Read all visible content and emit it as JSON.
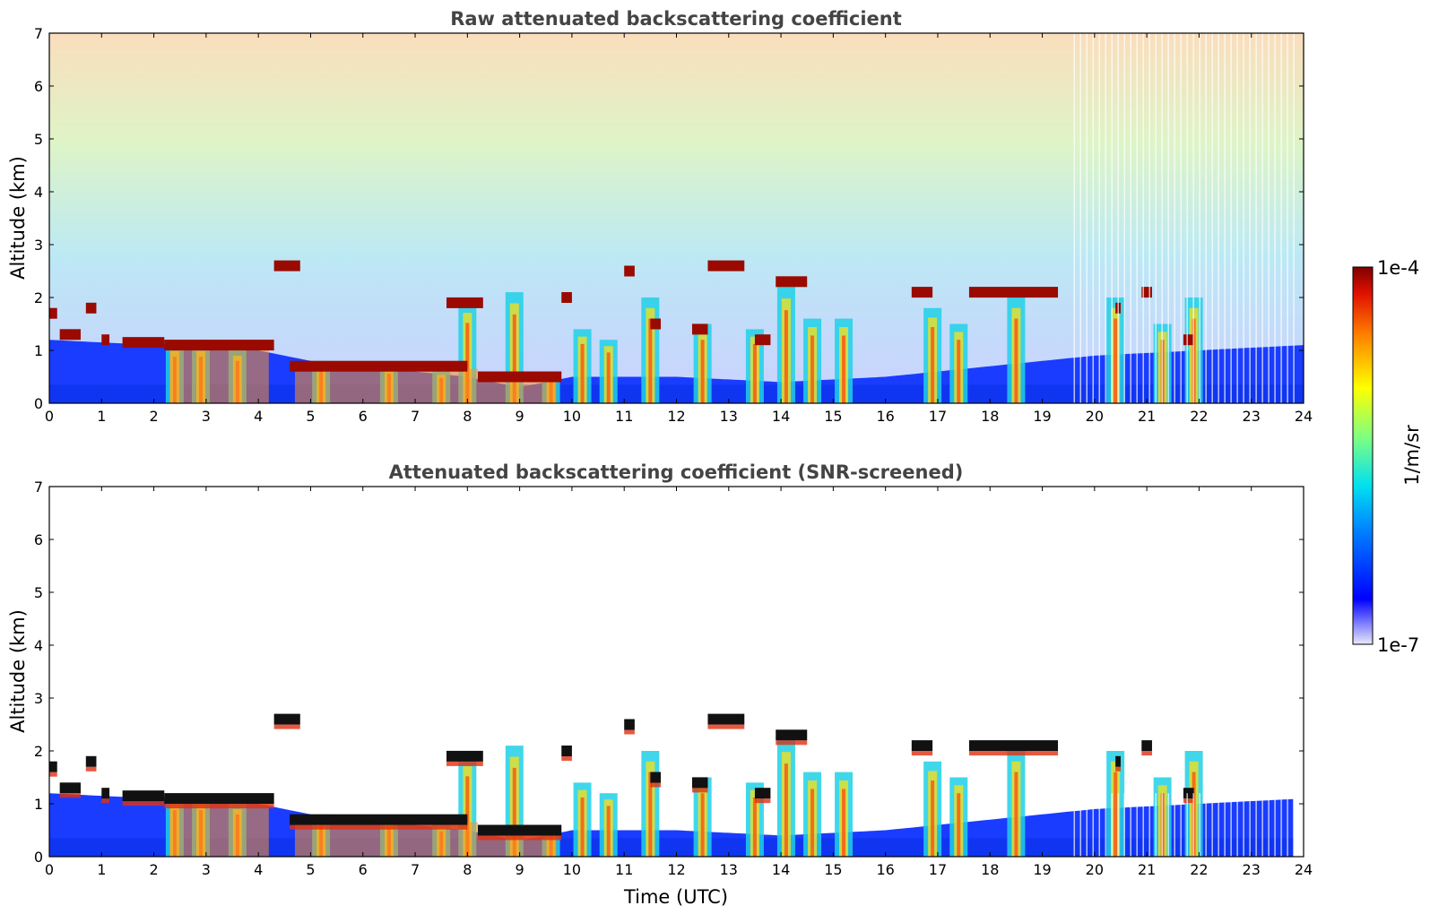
{
  "chart_data": [
    {
      "type": "heatmap",
      "title": "Raw attenuated backscattering coefficient",
      "xlabel": "",
      "ylabel": "Altitude (km)",
      "xlim": [
        0,
        24
      ],
      "ylim": [
        0,
        7
      ],
      "x_ticks": [
        0,
        1,
        2,
        3,
        4,
        5,
        6,
        7,
        8,
        9,
        10,
        11,
        12,
        13,
        14,
        15,
        16,
        17,
        18,
        19,
        20,
        21,
        22,
        23,
        24
      ],
      "y_ticks": [
        0,
        1,
        2,
        3,
        4,
        5,
        6,
        7
      ],
      "screened": false,
      "boundary_layer_top_km": [
        [
          0,
          1.2
        ],
        [
          2,
          1.1
        ],
        [
          3,
          1.2
        ],
        [
          4,
          1.0
        ],
        [
          5,
          0.8
        ],
        [
          6,
          0.7
        ],
        [
          7,
          0.6
        ],
        [
          8,
          0.5
        ],
        [
          9,
          0.3
        ],
        [
          10,
          0.5
        ],
        [
          12,
          0.5
        ],
        [
          14,
          0.4
        ],
        [
          16,
          0.5
        ],
        [
          18,
          0.7
        ],
        [
          20,
          0.9
        ],
        [
          22,
          1.0
        ],
        [
          24,
          1.1
        ]
      ],
      "cloud_layers": [
        {
          "t_start": 0.0,
          "t_end": 0.15,
          "alt_km": 1.7
        },
        {
          "t_start": 0.2,
          "t_end": 0.6,
          "alt_km": 1.3
        },
        {
          "t_start": 0.7,
          "t_end": 0.9,
          "alt_km": 1.8
        },
        {
          "t_start": 1.0,
          "t_end": 1.15,
          "alt_km": 1.2
        },
        {
          "t_start": 1.4,
          "t_end": 2.2,
          "alt_km": 1.15
        },
        {
          "t_start": 2.2,
          "t_end": 4.3,
          "alt_km": 1.1
        },
        {
          "t_start": 4.3,
          "t_end": 4.8,
          "alt_km": 2.6
        },
        {
          "t_start": 4.6,
          "t_end": 8.0,
          "alt_km": 0.7
        },
        {
          "t_start": 7.6,
          "t_end": 8.3,
          "alt_km": 1.9
        },
        {
          "t_start": 8.2,
          "t_end": 9.8,
          "alt_km": 0.5
        },
        {
          "t_start": 9.8,
          "t_end": 10.0,
          "alt_km": 2.0
        },
        {
          "t_start": 11.0,
          "t_end": 11.2,
          "alt_km": 2.5
        },
        {
          "t_start": 11.5,
          "t_end": 11.7,
          "alt_km": 1.5
        },
        {
          "t_start": 12.3,
          "t_end": 12.6,
          "alt_km": 1.4
        },
        {
          "t_start": 12.6,
          "t_end": 13.3,
          "alt_km": 2.6
        },
        {
          "t_start": 13.5,
          "t_end": 13.8,
          "alt_km": 1.2
        },
        {
          "t_start": 13.9,
          "t_end": 14.5,
          "alt_km": 2.3
        },
        {
          "t_start": 16.5,
          "t_end": 16.9,
          "alt_km": 2.1
        },
        {
          "t_start": 17.6,
          "t_end": 19.3,
          "alt_km": 2.1
        },
        {
          "t_start": 20.4,
          "t_end": 20.5,
          "alt_km": 1.8
        },
        {
          "t_start": 20.9,
          "t_end": 21.1,
          "alt_km": 2.1
        },
        {
          "t_start": 21.7,
          "t_end": 21.9,
          "alt_km": 1.2
        }
      ],
      "precip_shafts": [
        {
          "t": 2.4,
          "top_km": 1.1
        },
        {
          "t": 2.9,
          "top_km": 1.1
        },
        {
          "t": 3.6,
          "top_km": 1.0
        },
        {
          "t": 5.2,
          "top_km": 0.8
        },
        {
          "t": 6.5,
          "top_km": 0.7
        },
        {
          "t": 7.5,
          "top_km": 0.6
        },
        {
          "t": 8.0,
          "top_km": 1.9
        },
        {
          "t": 8.9,
          "top_km": 2.1
        },
        {
          "t": 9.6,
          "top_km": 0.5
        },
        {
          "t": 10.2,
          "top_km": 1.4
        },
        {
          "t": 10.7,
          "top_km": 1.2
        },
        {
          "t": 11.5,
          "top_km": 2.0
        },
        {
          "t": 12.5,
          "top_km": 1.5
        },
        {
          "t": 13.5,
          "top_km": 1.4
        },
        {
          "t": 14.1,
          "top_km": 2.2
        },
        {
          "t": 14.6,
          "top_km": 1.6
        },
        {
          "t": 15.2,
          "top_km": 1.6
        },
        {
          "t": 16.9,
          "top_km": 1.8
        },
        {
          "t": 17.4,
          "top_km": 1.5
        },
        {
          "t": 18.5,
          "top_km": 2.0
        },
        {
          "t": 20.4,
          "top_km": 2.0
        },
        {
          "t": 21.3,
          "top_km": 1.5
        },
        {
          "t": 21.9,
          "top_km": 2.0
        }
      ]
    },
    {
      "type": "heatmap",
      "title": "Attenuated backscattering coefficient (SNR-screened)",
      "xlabel": "Time (UTC)",
      "ylabel": "Altitude (km)",
      "xlim": [
        0,
        24
      ],
      "ylim": [
        0,
        7
      ],
      "x_ticks": [
        0,
        1,
        2,
        3,
        4,
        5,
        6,
        7,
        8,
        9,
        10,
        11,
        12,
        13,
        14,
        15,
        16,
        17,
        18,
        19,
        20,
        21,
        22,
        23,
        24
      ],
      "y_ticks": [
        0,
        1,
        2,
        3,
        4,
        5,
        6,
        7
      ],
      "screened": true,
      "data_end_time": 23.8
    }
  ],
  "colorbar": {
    "max_label": "1e-4",
    "min_label": "1e-7",
    "units": "1/m/sr",
    "colormap": "jet",
    "scale": "log"
  }
}
